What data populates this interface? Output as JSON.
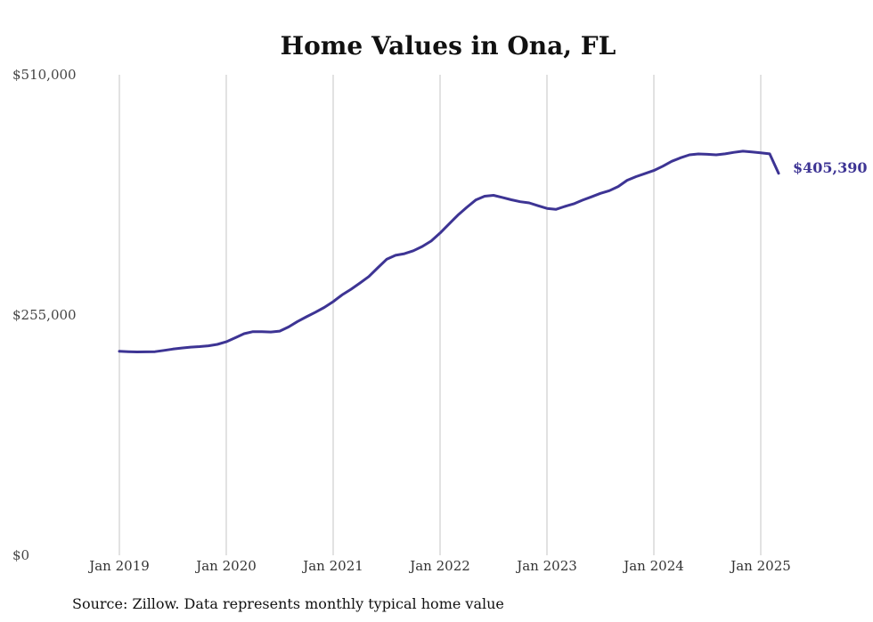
{
  "chart_data": {
    "type": "line",
    "title": "Home Values in Ona, FL",
    "xlabel": "",
    "ylabel": "",
    "x_tick_labels": [
      "Jan 2019",
      "Jan 2020",
      "Jan 2021",
      "Jan 2022",
      "Jan 2023",
      "Jan 2024",
      "Jan 2025"
    ],
    "y_tick_labels": [
      "$510,000",
      "$255,000",
      "$0"
    ],
    "ylim": [
      0,
      510000
    ],
    "xlim": [
      "2019-01",
      "2025-03"
    ],
    "grid": {
      "vertical": true,
      "horizontal": false
    },
    "legend": "none",
    "end_label": "$405,390",
    "line_color": "#3d3494",
    "x": [
      "2019-01",
      "2019-02",
      "2019-03",
      "2019-04",
      "2019-05",
      "2019-06",
      "2019-07",
      "2019-08",
      "2019-09",
      "2019-10",
      "2019-11",
      "2019-12",
      "2020-01",
      "2020-02",
      "2020-03",
      "2020-04",
      "2020-05",
      "2020-06",
      "2020-07",
      "2020-08",
      "2020-09",
      "2020-10",
      "2020-11",
      "2020-12",
      "2021-01",
      "2021-02",
      "2021-03",
      "2021-04",
      "2021-05",
      "2021-06",
      "2021-07",
      "2021-08",
      "2021-09",
      "2021-10",
      "2021-11",
      "2021-12",
      "2022-01",
      "2022-02",
      "2022-03",
      "2022-04",
      "2022-05",
      "2022-06",
      "2022-07",
      "2022-08",
      "2022-09",
      "2022-10",
      "2022-11",
      "2022-12",
      "2023-01",
      "2023-02",
      "2023-03",
      "2023-04",
      "2023-05",
      "2023-06",
      "2023-07",
      "2023-08",
      "2023-09",
      "2023-10",
      "2023-11",
      "2023-12",
      "2024-01",
      "2024-02",
      "2024-03",
      "2024-04",
      "2024-05",
      "2024-06",
      "2024-07",
      "2024-08",
      "2024-09",
      "2024-10",
      "2024-11",
      "2024-12",
      "2025-01",
      "2025-02",
      "2025-03"
    ],
    "series": [
      {
        "values": [
          216500,
          216100,
          215800,
          215900,
          216100,
          217400,
          218800,
          220000,
          220900,
          221500,
          222300,
          223800,
          226600,
          230800,
          235200,
          237300,
          237300,
          237000,
          237900,
          242300,
          248100,
          253100,
          257900,
          263000,
          269200,
          276300,
          282300,
          288900,
          295800,
          305100,
          314100,
          318400,
          320100,
          323200,
          327700,
          333500,
          342000,
          351500,
          361000,
          369300,
          377000,
          381100,
          382000,
          379800,
          377300,
          375200,
          374000,
          371000,
          368100,
          367100,
          370200,
          373000,
          376900,
          380400,
          384100,
          386900,
          391400,
          398000,
          401900,
          405100,
          408400,
          412900,
          418100,
          421900,
          425000,
          425900,
          425600,
          425000,
          426000,
          427600,
          428900,
          428000,
          427100,
          426000,
          405390
        ]
      }
    ]
  },
  "source_note": "Source: Zillow. Data represents monthly typical home value"
}
